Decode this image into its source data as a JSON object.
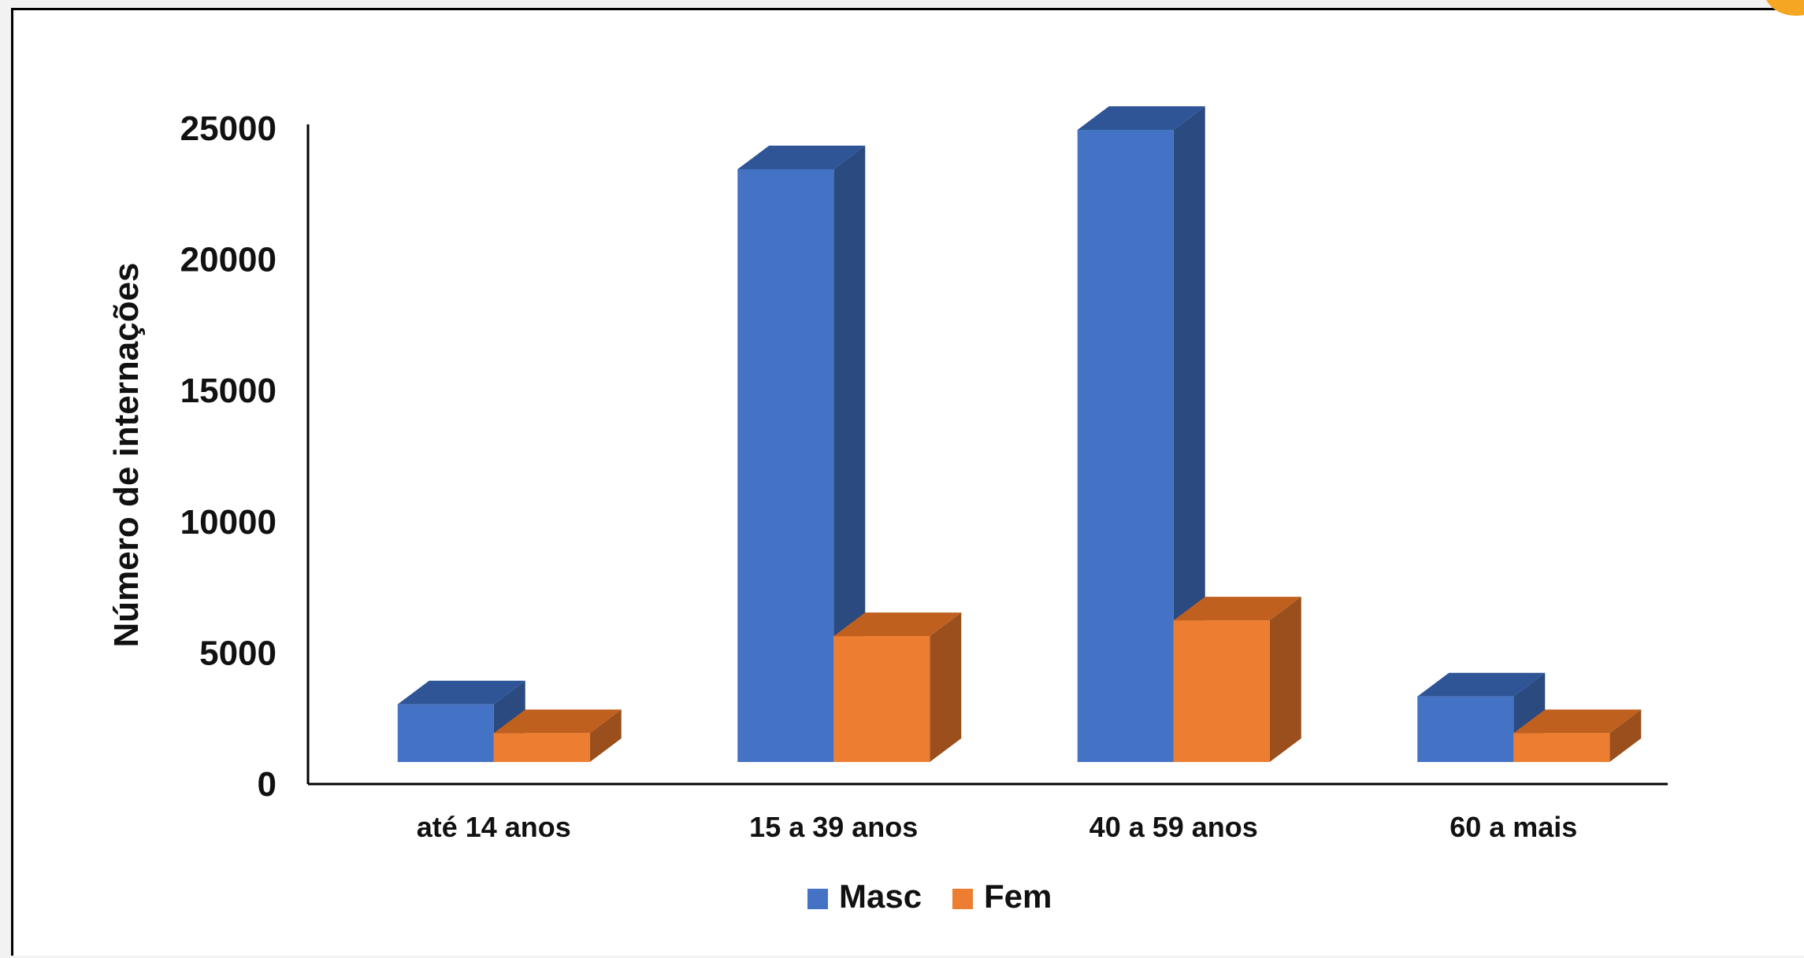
{
  "chart_data": {
    "type": "bar",
    "ylabel": "Número de internações",
    "xlabel": "",
    "ylim": [
      0,
      25000
    ],
    "yticks": [
      0,
      5000,
      10000,
      15000,
      20000,
      25000
    ],
    "categories": [
      "até 14 anos",
      "15 a 39 anos",
      "40 a 59 anos",
      "60 a mais"
    ],
    "series": [
      {
        "name": "Masc",
        "values": [
          2200,
          22600,
          24100,
          2500
        ],
        "color": "#4472c4",
        "side_color": "#2b4a80",
        "top_color": "#2f5597"
      },
      {
        "name": "Fem",
        "values": [
          1100,
          4800,
          5400,
          1100
        ],
        "color": "#ed7d31",
        "side_color": "#9a4f1c",
        "top_color": "#c0601f"
      }
    ],
    "grid": false,
    "legend_position": "bottom-center",
    "style": "3d-clustered-column"
  }
}
